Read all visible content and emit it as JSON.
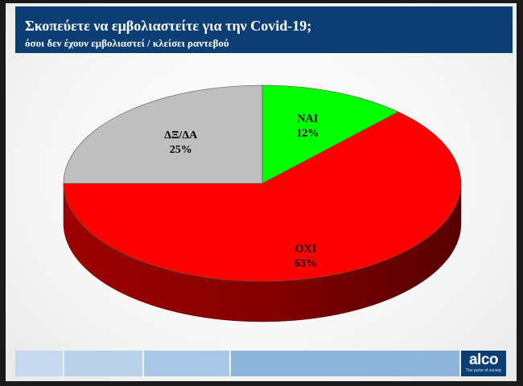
{
  "header": {
    "title": "Σκοπεύετε να εμβολιαστείτε για την Covid-19;",
    "subtitle": "όσοι δεν έχουν εμβολιαστεί / κλείσει ραντεβού"
  },
  "chart_data": {
    "type": "pie",
    "title": "Σκοπεύετε να εμβολιαστείτε για την Covid-19;",
    "subtitle": "όσοι δεν έχουν εμβολιαστεί / κλείσει ραντεβού",
    "slices": [
      {
        "label": "ΝΑΙ",
        "value": 12,
        "value_label": "12%",
        "color": "#00ff00"
      },
      {
        "label": "ΟΧΙ",
        "value": 63,
        "value_label": "63%",
        "color": "#ff0000"
      },
      {
        "label": "ΔΞ/ΔΑ",
        "value": 25,
        "value_label": "25%",
        "color": "#bfbfbf"
      }
    ],
    "start": "12 o'clock",
    "direction": "clockwise",
    "style": "3d",
    "legend": "none"
  },
  "footer": {
    "bar_colors": [
      "#c6d9ee",
      "#b9d1ea",
      "#a9c7e6",
      "#8fb4dc"
    ],
    "logo": {
      "name": "alco",
      "tagline": "The pulse of society"
    }
  }
}
